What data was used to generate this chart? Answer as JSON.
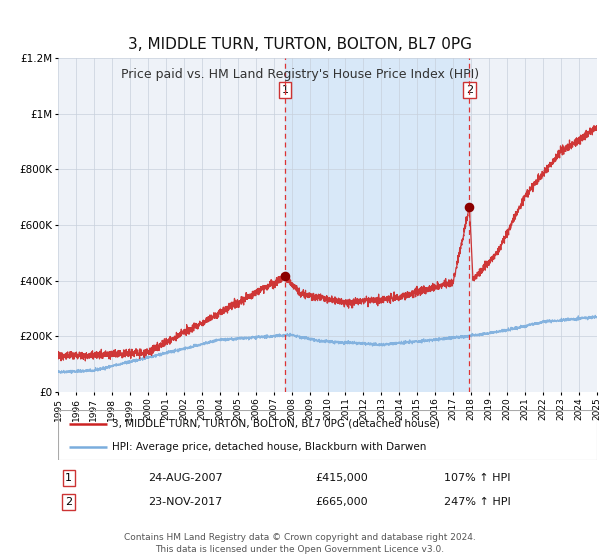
{
  "title": "3, MIDDLE TURN, TURTON, BOLTON, BL7 0PG",
  "subtitle": "Price paid vs. HM Land Registry's House Price Index (HPI)",
  "title_fontsize": 11,
  "subtitle_fontsize": 9,
  "bg_color": "#ffffff",
  "plot_bg_color": "#eef2f8",
  "grid_color": "#c8d0dc",
  "highlight_bg": "#d8e8f8",
  "sale1_date_num": 2007.644,
  "sale1_price": 415000,
  "sale1_label": "24-AUG-2007",
  "sale1_pct": "107%",
  "sale2_date_num": 2017.897,
  "sale2_price": 665000,
  "sale2_label": "23-NOV-2017",
  "sale2_pct": "247%",
  "sale_dot_color": "#8b0000",
  "hpi_line_color": "#7aaddd",
  "price_line_color": "#cc2222",
  "legend_line1": "3, MIDDLE TURN, TURTON, BOLTON, BL7 0PG (detached house)",
  "legend_line2": "HPI: Average price, detached house, Blackburn with Darwen",
  "footer1": "Contains HM Land Registry data © Crown copyright and database right 2024.",
  "footer2": "This data is licensed under the Open Government Licence v3.0.",
  "xmin": 1995,
  "xmax": 2025,
  "ymin": 0,
  "ymax": 1200000,
  "yticks": [
    0,
    200000,
    400000,
    600000,
    800000,
    1000000,
    1200000
  ],
  "ytick_labels": [
    "£0",
    "£200K",
    "£400K",
    "£600K",
    "£800K",
    "£1M",
    "£1.2M"
  ]
}
